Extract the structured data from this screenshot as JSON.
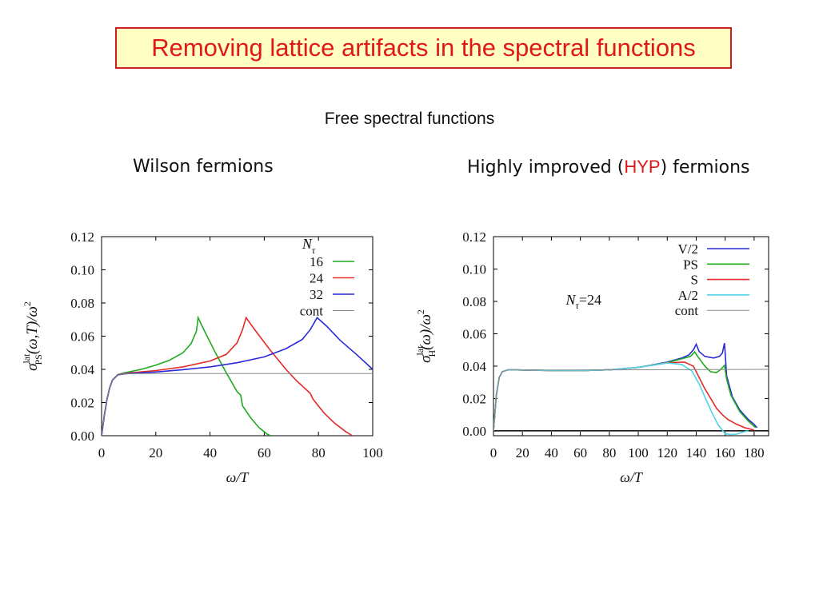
{
  "slide": {
    "title": "Removing lattice artifacts in the spectral functions",
    "subtitle": "Free spectral functions",
    "left_heading": "Wilson fermions",
    "right_heading": {
      "prefix": "Highly improved (",
      "highlight": "HYP",
      "suffix": ") fermions"
    }
  },
  "colors": {
    "title_border": "#cc1f1f",
    "title_background": "#ffffc4",
    "title_text": "#e01818",
    "green": "#1faa1f",
    "red": "#e52a2a",
    "blue": "#2a2ad6",
    "cyan": "#4fd3e6",
    "gray": "#888888"
  },
  "chart_data": [
    {
      "type": "line",
      "xlabel": "ω/T",
      "ylabel": {
        "base": "σ",
        "sup": "lat",
        "sub": "PS",
        "tail": "(ω,T)/ω",
        "exp": "2"
      },
      "xlim": [
        0,
        100
      ],
      "ylim": [
        0,
        0.12
      ],
      "xticks": [
        0,
        20,
        40,
        60,
        80,
        100
      ],
      "yticks": [
        "0.00",
        "0.02",
        "0.04",
        "0.06",
        "0.08",
        "0.10",
        "0.12"
      ],
      "legend": {
        "position": "top-right",
        "header": "N",
        "header_sub": "τ"
      },
      "series": [
        {
          "name": "16",
          "color": "#1faa1f",
          "points": [
            [
              0,
              0
            ],
            [
              1,
              0.012
            ],
            [
              2,
              0.022
            ],
            [
              3,
              0.029
            ],
            [
              4,
              0.0335
            ],
            [
              6,
              0.0368
            ],
            [
              8,
              0.0378
            ],
            [
              10,
              0.0384
            ],
            [
              15,
              0.0402
            ],
            [
              20,
              0.0425
            ],
            [
              25,
              0.0455
            ],
            [
              30,
              0.05
            ],
            [
              33,
              0.0555
            ],
            [
              35,
              0.063
            ],
            [
              35.6,
              0.0712
            ],
            [
              38,
              0.063
            ],
            [
              42,
              0.05
            ],
            [
              46,
              0.038
            ],
            [
              50,
              0.0265
            ],
            [
              51.3,
              0.0245
            ],
            [
              52,
              0.018
            ],
            [
              55,
              0.0108
            ],
            [
              58,
              0.005
            ],
            [
              61,
              0.001
            ],
            [
              62.3,
              0
            ]
          ]
        },
        {
          "name": "24",
          "color": "#e52a2a",
          "points": [
            [
              0,
              0
            ],
            [
              1,
              0.012
            ],
            [
              2,
              0.022
            ],
            [
              3,
              0.029
            ],
            [
              4,
              0.0335
            ],
            [
              6,
              0.0367
            ],
            [
              8,
              0.0374
            ],
            [
              10,
              0.0378
            ],
            [
              20,
              0.0393
            ],
            [
              30,
              0.0415
            ],
            [
              40,
              0.045
            ],
            [
              46,
              0.049
            ],
            [
              50,
              0.056
            ],
            [
              52,
              0.064
            ],
            [
              53.3,
              0.0712
            ],
            [
              56,
              0.065
            ],
            [
              62,
              0.052
            ],
            [
              68,
              0.04
            ],
            [
              72,
              0.033
            ],
            [
              77,
              0.0255
            ],
            [
              78,
              0.022
            ],
            [
              82,
              0.0138
            ],
            [
              86,
              0.0075
            ],
            [
              90,
              0.0025
            ],
            [
              92.5,
              0
            ]
          ]
        },
        {
          "name": "32",
          "color": "#2a2ad6",
          "points": [
            [
              0,
              0
            ],
            [
              1,
              0.012
            ],
            [
              2,
              0.022
            ],
            [
              3,
              0.029
            ],
            [
              4,
              0.0335
            ],
            [
              6,
              0.0366
            ],
            [
              8,
              0.0372
            ],
            [
              10,
              0.0375
            ],
            [
              20,
              0.0384
            ],
            [
              30,
              0.0398
            ],
            [
              40,
              0.0415
            ],
            [
              50,
              0.044
            ],
            [
              60,
              0.0475
            ],
            [
              68,
              0.0525
            ],
            [
              74,
              0.058
            ],
            [
              77,
              0.064
            ],
            [
              79.5,
              0.0712
            ],
            [
              83,
              0.066
            ],
            [
              88,
              0.0575
            ],
            [
              94,
              0.049
            ],
            [
              100,
              0.04
            ]
          ]
        },
        {
          "name": "cont",
          "color": "#888888",
          "points": [
            [
              0,
              0
            ],
            [
              1,
              0.012
            ],
            [
              2,
              0.022
            ],
            [
              3,
              0.029
            ],
            [
              4,
              0.0335
            ],
            [
              6,
              0.0365
            ],
            [
              8,
              0.0372
            ],
            [
              10,
              0.0375
            ],
            [
              100,
              0.0375
            ]
          ]
        }
      ]
    },
    {
      "type": "line",
      "xlabel": "ω/T",
      "ylabel": {
        "base": "σ",
        "sup": "lat",
        "sub": "H",
        "tail": "(ω)/ω",
        "exp": "2"
      },
      "xlim": [
        0,
        190
      ],
      "ylim": [
        -0.003,
        0.12
      ],
      "xticks": [
        0,
        20,
        40,
        60,
        80,
        100,
        120,
        140,
        160,
        180
      ],
      "yticks": [
        "0.00",
        "0.02",
        "0.04",
        "0.06",
        "0.08",
        "0.10",
        "0.12"
      ],
      "legend": {
        "position": "top-right"
      },
      "annotation": {
        "base": "N",
        "sub": "τ",
        "rest": "=24"
      },
      "series": [
        {
          "name": "V/2",
          "color": "#2a2ad6",
          "points": [
            [
              0,
              0
            ],
            [
              2,
              0.022
            ],
            [
              4,
              0.033
            ],
            [
              6,
              0.0365
            ],
            [
              10,
              0.0378
            ],
            [
              20,
              0.0376
            ],
            [
              40,
              0.0373
            ],
            [
              60,
              0.0372
            ],
            [
              80,
              0.0377
            ],
            [
              100,
              0.0392
            ],
            [
              120,
              0.0425
            ],
            [
              130,
              0.045
            ],
            [
              135,
              0.047
            ],
            [
              138,
              0.05
            ],
            [
              140,
              0.0535
            ],
            [
              142,
              0.049
            ],
            [
              146,
              0.046
            ],
            [
              152,
              0.045
            ],
            [
              156,
              0.046
            ],
            [
              158,
              0.048
            ],
            [
              159.5,
              0.0542
            ],
            [
              160,
              0.048
            ],
            [
              161,
              0.034
            ],
            [
              165,
              0.021
            ],
            [
              170,
              0.013
            ],
            [
              176,
              0.007
            ],
            [
              180,
              0.004
            ],
            [
              182,
              0.002
            ]
          ]
        },
        {
          "name": "PS",
          "color": "#1faa1f",
          "points": [
            [
              0,
              0
            ],
            [
              2,
              0.022
            ],
            [
              4,
              0.033
            ],
            [
              6,
              0.0365
            ],
            [
              10,
              0.0378
            ],
            [
              20,
              0.0376
            ],
            [
              40,
              0.0373
            ],
            [
              60,
              0.0372
            ],
            [
              80,
              0.0377
            ],
            [
              100,
              0.0392
            ],
            [
              120,
              0.0422
            ],
            [
              130,
              0.0445
            ],
            [
              136,
              0.046
            ],
            [
              139,
              0.0488
            ],
            [
              141,
              0.046
            ],
            [
              146,
              0.04
            ],
            [
              150,
              0.0365
            ],
            [
              154,
              0.036
            ],
            [
              157,
              0.038
            ],
            [
              159.5,
              0.0405
            ],
            [
              161,
              0.032
            ],
            [
              164,
              0.022
            ],
            [
              170,
              0.012
            ],
            [
              176,
              0.006
            ],
            [
              181,
              0.002
            ]
          ]
        },
        {
          "name": "S",
          "color": "#e52a2a",
          "points": [
            [
              0,
              0
            ],
            [
              2,
              0.022
            ],
            [
              4,
              0.033
            ],
            [
              6,
              0.0365
            ],
            [
              10,
              0.0378
            ],
            [
              20,
              0.0376
            ],
            [
              40,
              0.0373
            ],
            [
              60,
              0.0372
            ],
            [
              80,
              0.0377
            ],
            [
              100,
              0.0392
            ],
            [
              120,
              0.042
            ],
            [
              132,
              0.0425
            ],
            [
              138,
              0.04
            ],
            [
              142,
              0.033
            ],
            [
              146,
              0.026
            ],
            [
              150,
              0.02
            ],
            [
              154,
              0.014
            ],
            [
              158,
              0.01
            ],
            [
              162,
              0.007
            ],
            [
              168,
              0.004
            ],
            [
              174,
              0.0018
            ],
            [
              180,
              0.0005
            ]
          ]
        },
        {
          "name": "A/2",
          "color": "#4fd3e6",
          "points": [
            [
              0,
              0
            ],
            [
              2,
              0.022
            ],
            [
              4,
              0.033
            ],
            [
              6,
              0.0365
            ],
            [
              10,
              0.0378
            ],
            [
              20,
              0.0376
            ],
            [
              40,
              0.0373
            ],
            [
              60,
              0.0372
            ],
            [
              80,
              0.0377
            ],
            [
              100,
              0.0392
            ],
            [
              120,
              0.042
            ],
            [
              130,
              0.041
            ],
            [
              137,
              0.037
            ],
            [
              142,
              0.029
            ],
            [
              147,
              0.019
            ],
            [
              151,
              0.011
            ],
            [
              155,
              0.004
            ],
            [
              158,
              0.0005
            ],
            [
              160,
              -0.0018
            ],
            [
              164,
              -0.0023
            ],
            [
              168,
              -0.002
            ],
            [
              172,
              -0.0008
            ],
            [
              176,
              0
            ]
          ]
        },
        {
          "name": "cont",
          "color": "#888888",
          "points": [
            [
              0,
              0
            ],
            [
              2,
              0.022
            ],
            [
              4,
              0.033
            ],
            [
              6,
              0.0365
            ],
            [
              10,
              0.0375
            ],
            [
              190,
              0.038
            ]
          ]
        }
      ]
    }
  ]
}
